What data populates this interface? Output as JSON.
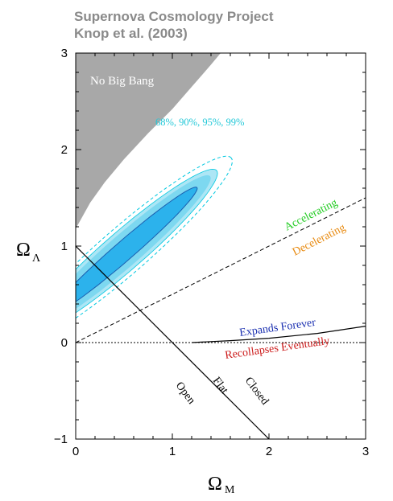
{
  "header": {
    "line1": "Supernova Cosmology Project",
    "line2": "Knop et al. (2003)"
  },
  "chart_data": {
    "type": "contour",
    "xlabel": "Ω",
    "xlabel_sub": "M",
    "ylabel": "Ω",
    "ylabel_sub": "Λ",
    "xlim": [
      0,
      3
    ],
    "ylim": [
      -1,
      3
    ],
    "xticks": [
      0,
      1,
      2,
      3
    ],
    "yticks": [
      -1,
      0,
      1,
      2,
      3
    ],
    "grid": false,
    "colors": {
      "no_big_bang": "#a8a8a8",
      "contour_99": "#00c8e0",
      "contour_95": "#ade6f5",
      "contour_90": "#7dd8f0",
      "contour_68": "#2cb2ec",
      "contour_68_edge": "#1a5fb0",
      "accelerating": "#22cc22",
      "decelerating": "#e88a10",
      "expands_forever": "#1a2fb0",
      "recollapses": "#cc1a1a",
      "confidence_label": "#22c8d8"
    },
    "confidence_regions": {
      "label": "68%, 90%, 95%, 99%",
      "levels": [
        "68%",
        "90%",
        "95%",
        "99%"
      ],
      "center": [
        0.5,
        0.95
      ],
      "angle_deg": 41,
      "semi_major": [
        1.0,
        1.18,
        1.27,
        1.47
      ],
      "semi_minor": [
        0.1,
        0.165,
        0.2,
        0.24
      ]
    },
    "regions": [
      {
        "name": "No Big Bang",
        "boundary": [
          [
            0,
            1.18
          ],
          [
            0.15,
            1.45
          ],
          [
            0.3,
            1.66
          ],
          [
            0.5,
            1.9
          ],
          [
            0.75,
            2.17
          ],
          [
            1.0,
            2.42
          ],
          [
            1.2,
            2.65
          ],
          [
            1.4,
            2.88
          ],
          [
            1.5,
            3.0
          ]
        ]
      }
    ],
    "lines": [
      {
        "name": "flat",
        "style": "solid",
        "points": [
          [
            0,
            1
          ],
          [
            2,
            -1
          ]
        ]
      },
      {
        "name": "acceleration",
        "style": "dashed",
        "points": [
          [
            0,
            0
          ],
          [
            3,
            1.5
          ]
        ]
      },
      {
        "name": "expansion",
        "style": "dotted",
        "points": [
          [
            0,
            0
          ],
          [
            1.2,
            0
          ],
          [
            3,
            0
          ]
        ]
      },
      {
        "name": "expansion",
        "style": "solid",
        "points": [
          [
            1.2,
            0
          ],
          [
            1.6,
            0.02
          ],
          [
            2.0,
            0.045
          ],
          [
            2.5,
            0.095
          ],
          [
            3.0,
            0.17
          ]
        ]
      }
    ],
    "annotations": {
      "no_big_bang": "No Big Bang",
      "accelerating": "Accelerating",
      "decelerating": "Decelerating",
      "expands_forever": "Expands Forever",
      "recollapses": "Recollapses Eventually",
      "open": "Open",
      "flat": "Flat",
      "closed": "Closed"
    }
  }
}
